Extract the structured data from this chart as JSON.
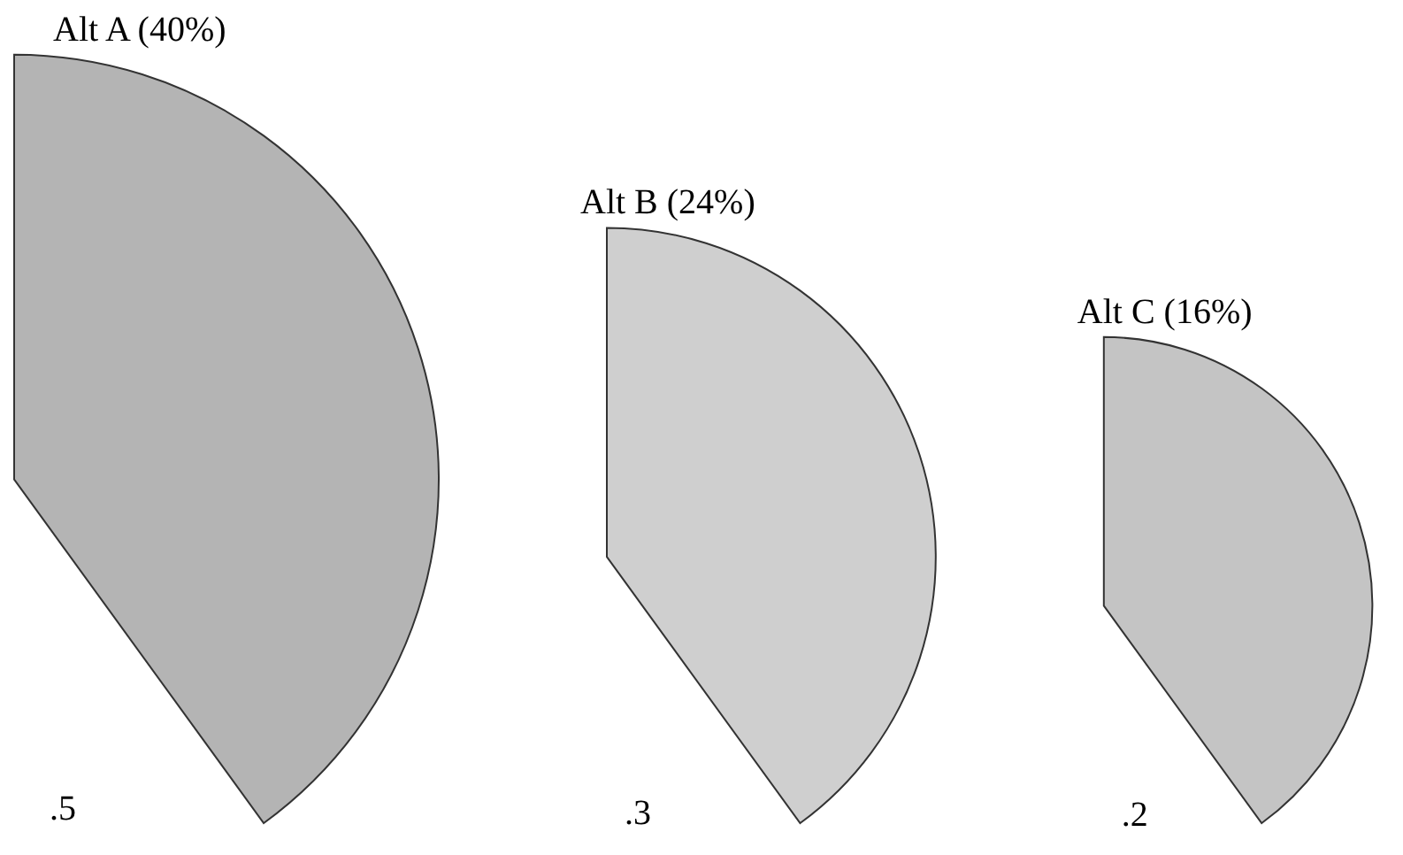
{
  "chart_data": {
    "type": "other",
    "categories": [
      "Alt A (40%)",
      "Alt B (24%)",
      "Alt C (16%)"
    ],
    "values": [
      0.5,
      0.3,
      0.2
    ],
    "value_labels": [
      ".5",
      ".3",
      ".2"
    ],
    "colors": [
      "#b4b4b4",
      "#cfcfcf",
      "#c4c4c4"
    ]
  }
}
